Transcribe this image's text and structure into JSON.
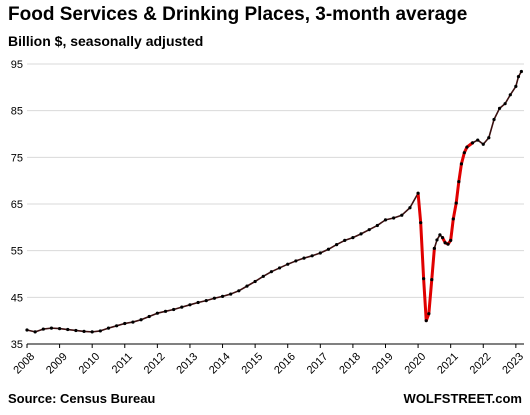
{
  "header": {
    "title": "Food Services & Drinking Places, 3-month average",
    "subtitle": "Billion $, seasonally adjusted"
  },
  "footer": {
    "source": "Source: Census Bureau",
    "credit": "WOLFSTREET.com"
  },
  "colors": {
    "line": "#e00000",
    "marker": "#000000",
    "grid": "#d9d9d9",
    "axis": "#000000"
  },
  "chart_data": {
    "type": "line",
    "title": "Food Services & Drinking Places, 3-month average",
    "ylabel": "Billion $, seasonally adjusted",
    "xlabel": "",
    "ylim": [
      35,
      95
    ],
    "xlim": [
      2008,
      2023.25
    ],
    "yticks": [
      35,
      45,
      55,
      65,
      75,
      85,
      95
    ],
    "xticks": [
      "2008",
      "2009",
      "2010",
      "2011",
      "2012",
      "2013",
      "2014",
      "2015",
      "2016",
      "2017",
      "2018",
      "2019",
      "2020",
      "2021",
      "2022",
      "2023"
    ],
    "grid": "horizontal",
    "highlight_segments": [
      [
        2020.0,
        2020.5
      ],
      [
        2020.75,
        2021.75
      ]
    ],
    "series": [
      {
        "points": [
          [
            2008.0,
            38.0
          ],
          [
            2008.25,
            37.6
          ],
          [
            2008.5,
            38.2
          ],
          [
            2008.75,
            38.4
          ],
          [
            2009.0,
            38.3
          ],
          [
            2009.25,
            38.1
          ],
          [
            2009.5,
            37.9
          ],
          [
            2009.75,
            37.7
          ],
          [
            2010.0,
            37.6
          ],
          [
            2010.25,
            37.8
          ],
          [
            2010.5,
            38.4
          ],
          [
            2010.75,
            38.9
          ],
          [
            2011.0,
            39.4
          ],
          [
            2011.25,
            39.7
          ],
          [
            2011.5,
            40.2
          ],
          [
            2011.75,
            40.9
          ],
          [
            2012.0,
            41.6
          ],
          [
            2012.25,
            42.0
          ],
          [
            2012.5,
            42.4
          ],
          [
            2012.75,
            42.9
          ],
          [
            2013.0,
            43.4
          ],
          [
            2013.25,
            43.9
          ],
          [
            2013.5,
            44.3
          ],
          [
            2013.75,
            44.8
          ],
          [
            2014.0,
            45.2
          ],
          [
            2014.25,
            45.7
          ],
          [
            2014.5,
            46.4
          ],
          [
            2014.75,
            47.4
          ],
          [
            2015.0,
            48.4
          ],
          [
            2015.25,
            49.5
          ],
          [
            2015.5,
            50.5
          ],
          [
            2015.75,
            51.3
          ],
          [
            2016.0,
            52.1
          ],
          [
            2016.25,
            52.8
          ],
          [
            2016.5,
            53.4
          ],
          [
            2016.75,
            53.9
          ],
          [
            2017.0,
            54.5
          ],
          [
            2017.25,
            55.3
          ],
          [
            2017.5,
            56.3
          ],
          [
            2017.75,
            57.2
          ],
          [
            2018.0,
            57.8
          ],
          [
            2018.25,
            58.6
          ],
          [
            2018.5,
            59.5
          ],
          [
            2018.75,
            60.4
          ],
          [
            2019.0,
            61.6
          ],
          [
            2019.25,
            62.0
          ],
          [
            2019.5,
            62.6
          ],
          [
            2019.75,
            64.2
          ],
          [
            2020.0,
            67.3
          ],
          [
            2020.08,
            61.0
          ],
          [
            2020.17,
            49.0
          ],
          [
            2020.25,
            40.0
          ],
          [
            2020.33,
            41.5
          ],
          [
            2020.42,
            48.8
          ],
          [
            2020.5,
            55.5
          ],
          [
            2020.58,
            57.3
          ],
          [
            2020.67,
            58.4
          ],
          [
            2020.75,
            57.8
          ],
          [
            2020.83,
            56.7
          ],
          [
            2020.92,
            56.4
          ],
          [
            2021.0,
            57.2
          ],
          [
            2021.08,
            61.8
          ],
          [
            2021.17,
            65.2
          ],
          [
            2021.25,
            69.8
          ],
          [
            2021.33,
            73.6
          ],
          [
            2021.42,
            76.0
          ],
          [
            2021.5,
            77.2
          ],
          [
            2021.67,
            78.1
          ],
          [
            2021.83,
            78.7
          ],
          [
            2022.0,
            77.8
          ],
          [
            2022.17,
            79.2
          ],
          [
            2022.33,
            83.1
          ],
          [
            2022.5,
            85.5
          ],
          [
            2022.67,
            86.5
          ],
          [
            2022.83,
            88.4
          ],
          [
            2023.0,
            90.2
          ],
          [
            2023.08,
            92.3
          ],
          [
            2023.17,
            93.4
          ]
        ]
      }
    ]
  }
}
